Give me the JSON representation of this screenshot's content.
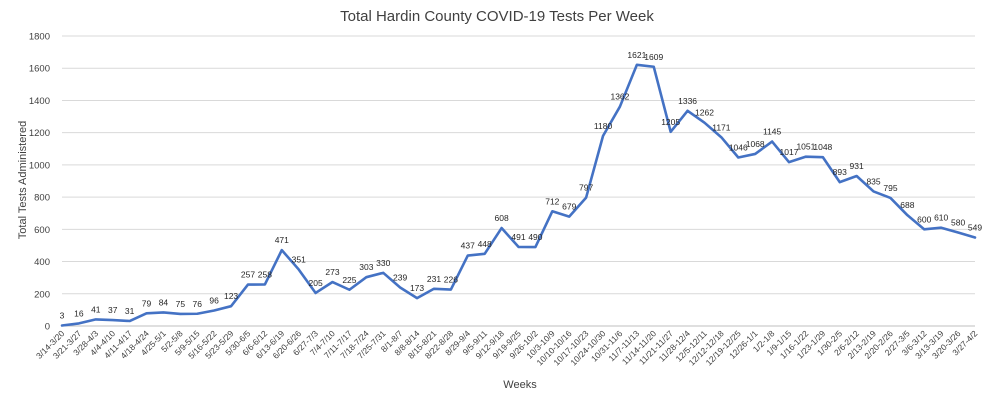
{
  "chart_data": {
    "type": "line",
    "title": "Total Hardin County COVID-19 Tests Per Week",
    "xlabel": "Weeks",
    "ylabel": "Total Tests Administered",
    "ylim": [
      0,
      1800
    ],
    "yticks": [
      0,
      200,
      400,
      600,
      800,
      1000,
      1200,
      1400,
      1600,
      1800
    ],
    "grid": true,
    "line_color": "#4472c4",
    "categories": [
      "3/14-3/20",
      "3/21-3/27",
      "3/28-4/3",
      "4/4-4/10",
      "4/11-4/17",
      "4/18-4/24",
      "4/25-5/1",
      "5/2-5/8",
      "5/9-5/15",
      "5/16-5/22",
      "5/23-5/29",
      "5/30-6/5",
      "6/6-6/12",
      "6/13-6/19",
      "6/20-6/26",
      "6/27-7/3",
      "7/4-7/10",
      "7/11-7/17",
      "7/18-7/24",
      "7/25-7/31",
      "8/1-8/7",
      "8/8-8/14",
      "8/15-8/21",
      "8/22-8/28",
      "8/29-9/4",
      "9/5-9/11",
      "9/12-9/18",
      "9/19-9/25",
      "9/26-10/2",
      "10/3-10/9",
      "10/10-10/16",
      "10/17-10/23",
      "10/24-10/30",
      "10/31-11/6",
      "11/7-11/13",
      "11/14-11/20",
      "11/21-11/27",
      "11/28-12/4",
      "12/5-12/11",
      "12/12-12/18",
      "12/19-12/25",
      "12/26-1/1",
      "1/2-1/8",
      "1/9-1/15",
      "1/16-1/22",
      "1/23-1/29",
      "1/30-2/5",
      "2/6-2/12",
      "2/13-2/19",
      "2/20-2/26",
      "2/27-3/5",
      "3/6-3/12",
      "3/13-3/19",
      "3/20-3/26",
      "3/27-4/2"
    ],
    "values": [
      3,
      16,
      41,
      37,
      31,
      79,
      84,
      75,
      76,
      96,
      123,
      257,
      258,
      471,
      351,
      205,
      273,
      225,
      303,
      330,
      239,
      173,
      231,
      226,
      437,
      448,
      608,
      491,
      490,
      712,
      679,
      797,
      1180,
      1362,
      1621,
      1609,
      1205,
      1336,
      1262,
      1171,
      1046,
      1068,
      1145,
      1017,
      1051,
      1048,
      893,
      931,
      835,
      795,
      688,
      600,
      610,
      580,
      549
    ],
    "data_labels": [
      "3",
      "16",
      "41",
      "37",
      "31",
      "79",
      "84",
      "75",
      "76",
      "96",
      "123",
      "257",
      "258",
      "471",
      "351",
      "205",
      "273",
      "225",
      "303",
      "330",
      "239",
      "173",
      "231",
      "226",
      "437",
      "448",
      "608",
      "491",
      "490",
      "712",
      "679",
      "797",
      "1180",
      "1362",
      "1621",
      "1609",
      "1205",
      "1336",
      "1262",
      "1171",
      "1046",
      "1068",
      "1145",
      "1017",
      "1051",
      "1048",
      "893",
      "931",
      "835",
      "795",
      "688",
      "600",
      "610",
      "580",
      "549"
    ]
  }
}
